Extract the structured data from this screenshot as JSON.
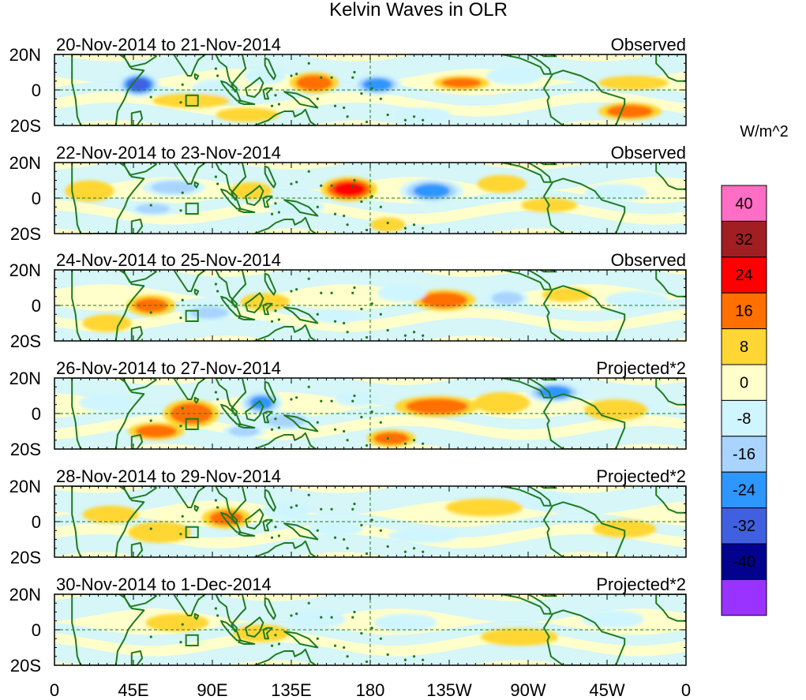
{
  "chart_data": {
    "type": "heatmap",
    "title": "Kelvin Waves in OLR",
    "lat_ticks": [
      "20N",
      "0",
      "20S"
    ],
    "lon_ticks": [
      "0",
      "45E",
      "90E",
      "135E",
      "180",
      "135W",
      "90W",
      "45W",
      "0"
    ],
    "lat_range": [
      -20,
      20
    ],
    "lon_range": [
      0,
      360
    ],
    "reference_lines": {
      "equator_lat": 0,
      "dateline_lon": 180
    },
    "box_region": {
      "lon": [
        75,
        80
      ],
      "lat": [
        -8,
        -3
      ]
    },
    "colorbar": {
      "unit": "W/m^2",
      "labels": [
        "40",
        "32",
        "24",
        "16",
        "8",
        "0",
        "-8",
        "-16",
        "-24",
        "-32",
        "-40"
      ],
      "colors": [
        "#ff6ec4",
        "#a11e22",
        "#ff0000",
        "#ff7000",
        "#ffd633",
        "#ffffcc",
        "#cff5ff",
        "#a8d4ff",
        "#2e96ff",
        "#4060e0",
        "#02028f",
        "#9a33ff"
      ]
    },
    "panels": [
      {
        "date_range": "20-Nov-2014 to 21-Nov-2014",
        "kind": "Observed",
        "anomalies": [
          {
            "lon": 48,
            "lat": 3,
            "value": -36,
            "w": 12,
            "h": 7
          },
          {
            "lon": 20,
            "lat": 8,
            "value": 6,
            "w": 16,
            "h": 5
          },
          {
            "lon": 92,
            "lat": 0,
            "value": -12,
            "w": 14,
            "h": 6
          },
          {
            "lon": 78,
            "lat": -6,
            "value": 10,
            "w": 22,
            "h": 4
          },
          {
            "lon": 148,
            "lat": 4,
            "value": 20,
            "w": 14,
            "h": 6
          },
          {
            "lon": 184,
            "lat": 3,
            "value": -28,
            "w": 14,
            "h": 6
          },
          {
            "lon": 232,
            "lat": 4,
            "value": 18,
            "w": 16,
            "h": 4
          },
          {
            "lon": 262,
            "lat": 8,
            "value": -12,
            "w": 16,
            "h": 5
          },
          {
            "lon": 120,
            "lat": 8,
            "value": -9,
            "w": 12,
            "h": 5
          },
          {
            "lon": 330,
            "lat": 4,
            "value": 14,
            "w": 20,
            "h": 4
          },
          {
            "lon": 328,
            "lat": -12,
            "value": 20,
            "w": 18,
            "h": 5
          },
          {
            "lon": 110,
            "lat": -14,
            "value": 9,
            "w": 18,
            "h": 4
          },
          {
            "lon": 210,
            "lat": -14,
            "value": -10,
            "w": 16,
            "h": 4
          }
        ]
      },
      {
        "date_range": "22-Nov-2014 to 23-Nov-2014",
        "kind": "Observed",
        "anomalies": [
          {
            "lon": 168,
            "lat": 5,
            "value": 26,
            "w": 16,
            "h": 7
          },
          {
            "lon": 215,
            "lat": 4,
            "value": -26,
            "w": 18,
            "h": 7
          },
          {
            "lon": 255,
            "lat": 8,
            "value": 14,
            "w": 14,
            "h": 5
          },
          {
            "lon": 68,
            "lat": 6,
            "value": -18,
            "w": 18,
            "h": 5
          },
          {
            "lon": 56,
            "lat": -6,
            "value": -16,
            "w": 14,
            "h": 4
          },
          {
            "lon": 20,
            "lat": 4,
            "value": 8,
            "w": 14,
            "h": 6
          },
          {
            "lon": 112,
            "lat": 4,
            "value": 12,
            "w": 12,
            "h": 5
          },
          {
            "lon": 138,
            "lat": -5,
            "value": -10,
            "w": 16,
            "h": 4
          },
          {
            "lon": 190,
            "lat": -15,
            "value": 14,
            "w": 10,
            "h": 4
          },
          {
            "lon": 320,
            "lat": 3,
            "value": -10,
            "w": 18,
            "h": 5
          },
          {
            "lon": 282,
            "lat": -4,
            "value": 8,
            "w": 16,
            "h": 4
          }
        ]
      },
      {
        "date_range": "24-Nov-2014 to 25-Nov-2014",
        "kind": "Observed",
        "anomalies": [
          {
            "lon": 222,
            "lat": 3,
            "value": 20,
            "w": 18,
            "h": 6
          },
          {
            "lon": 258,
            "lat": 4,
            "value": -20,
            "w": 12,
            "h": 5
          },
          {
            "lon": 198,
            "lat": 7,
            "value": -14,
            "w": 14,
            "h": 5
          },
          {
            "lon": 55,
            "lat": 0,
            "value": 16,
            "w": 14,
            "h": 6
          },
          {
            "lon": 30,
            "lat": -10,
            "value": 12,
            "w": 14,
            "h": 5
          },
          {
            "lon": 88,
            "lat": -4,
            "value": -16,
            "w": 16,
            "h": 5
          },
          {
            "lon": 120,
            "lat": 2,
            "value": 10,
            "w": 14,
            "h": 5
          },
          {
            "lon": 160,
            "lat": -6,
            "value": -10,
            "w": 14,
            "h": 4
          },
          {
            "lon": 292,
            "lat": 6,
            "value": 12,
            "w": 14,
            "h": 4
          },
          {
            "lon": 332,
            "lat": 3,
            "value": -10,
            "w": 18,
            "h": 5
          }
        ]
      },
      {
        "date_range": "26-Nov-2014 to 27-Nov-2014",
        "kind": "Projected*2",
        "anomalies": [
          {
            "lon": 78,
            "lat": 0,
            "value": 22,
            "w": 16,
            "h": 8
          },
          {
            "lon": 58,
            "lat": -10,
            "value": 20,
            "w": 16,
            "h": 5
          },
          {
            "lon": 118,
            "lat": 6,
            "value": -24,
            "w": 12,
            "h": 7
          },
          {
            "lon": 132,
            "lat": -4,
            "value": -18,
            "w": 16,
            "h": 5
          },
          {
            "lon": 218,
            "lat": 4,
            "value": 20,
            "w": 24,
            "h": 6
          },
          {
            "lon": 255,
            "lat": 6,
            "value": 14,
            "w": 16,
            "h": 6
          },
          {
            "lon": 285,
            "lat": 12,
            "value": -28,
            "w": 16,
            "h": 6
          },
          {
            "lon": 192,
            "lat": -14,
            "value": 18,
            "w": 14,
            "h": 5
          },
          {
            "lon": 108,
            "lat": -10,
            "value": -18,
            "w": 12,
            "h": 4
          },
          {
            "lon": 30,
            "lat": 6,
            "value": -10,
            "w": 16,
            "h": 5
          },
          {
            "lon": 320,
            "lat": 2,
            "value": 12,
            "w": 18,
            "h": 6
          },
          {
            "lon": 172,
            "lat": 8,
            "value": -10,
            "w": 12,
            "h": 4
          }
        ]
      },
      {
        "date_range": "28-Nov-2014 to 29-Nov-2014",
        "kind": "Projected*2",
        "anomalies": [
          {
            "lon": 98,
            "lat": 2,
            "value": 16,
            "w": 14,
            "h": 6
          },
          {
            "lon": 60,
            "lat": -6,
            "value": 12,
            "w": 18,
            "h": 6
          },
          {
            "lon": 32,
            "lat": 4,
            "value": 8,
            "w": 16,
            "h": 5
          },
          {
            "lon": 132,
            "lat": 6,
            "value": -12,
            "w": 14,
            "h": 5
          },
          {
            "lon": 160,
            "lat": -4,
            "value": -10,
            "w": 16,
            "h": 4
          },
          {
            "lon": 245,
            "lat": 8,
            "value": 10,
            "w": 22,
            "h": 5
          },
          {
            "lon": 280,
            "lat": 12,
            "value": -10,
            "w": 16,
            "h": 5
          },
          {
            "lon": 210,
            "lat": -8,
            "value": -8,
            "w": 20,
            "h": 4
          },
          {
            "lon": 325,
            "lat": -4,
            "value": 8,
            "w": 18,
            "h": 5
          }
        ]
      },
      {
        "date_range": "30-Nov-2014 to 1-Dec-2014",
        "kind": "Projected*2",
        "anomalies": [
          {
            "lon": 118,
            "lat": -2,
            "value": 10,
            "w": 16,
            "h": 5
          },
          {
            "lon": 70,
            "lat": 4,
            "value": 8,
            "w": 18,
            "h": 5
          },
          {
            "lon": 150,
            "lat": 6,
            "value": -10,
            "w": 16,
            "h": 5
          },
          {
            "lon": 200,
            "lat": 4,
            "value": -8,
            "w": 18,
            "h": 5
          },
          {
            "lon": 265,
            "lat": -4,
            "value": 8,
            "w": 22,
            "h": 5
          },
          {
            "lon": 318,
            "lat": 6,
            "value": -8,
            "w": 18,
            "h": 5
          },
          {
            "lon": 30,
            "lat": -8,
            "value": 6,
            "w": 16,
            "h": 4
          }
        ]
      }
    ]
  }
}
